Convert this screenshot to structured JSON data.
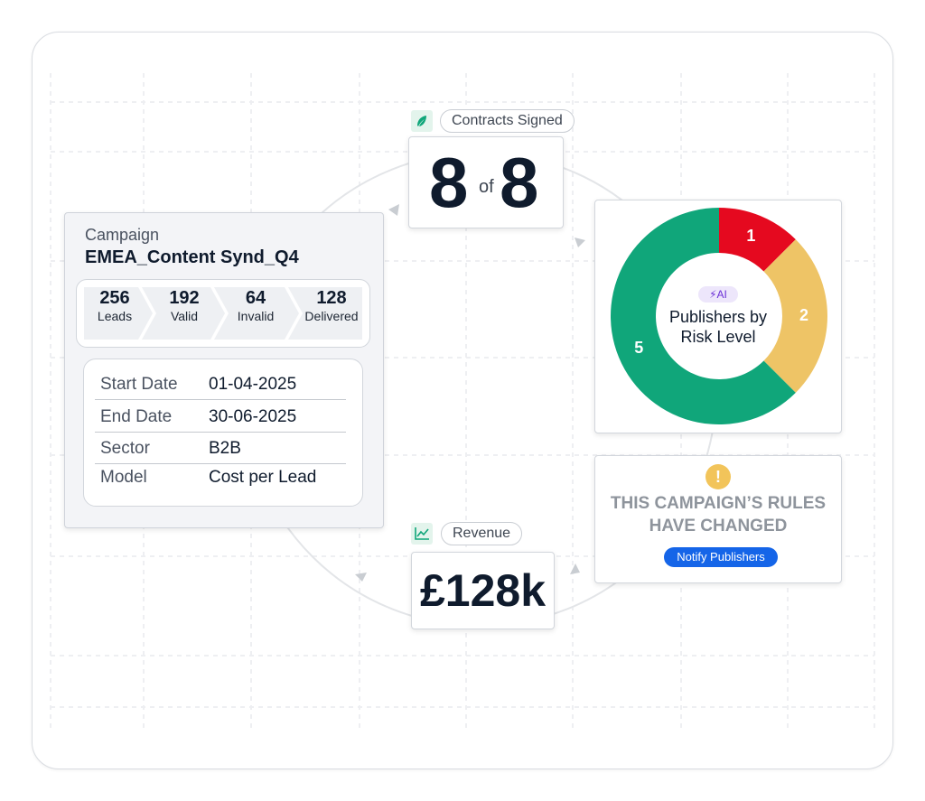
{
  "campaign": {
    "label": "Campaign",
    "name": "EMEA_Content Synd_Q4",
    "funnel": [
      {
        "value": "256",
        "label": "Leads"
      },
      {
        "value": "192",
        "label": "Valid"
      },
      {
        "value": "64",
        "label": "Invalid"
      },
      {
        "value": "128",
        "label": "Delivered"
      }
    ],
    "details": [
      {
        "key": "Start Date",
        "value": "01-04-2025"
      },
      {
        "key": "End Date",
        "value": "30-06-2025"
      },
      {
        "key": "Sector",
        "value": "B2B"
      },
      {
        "key": "Model",
        "value": "Cost per Lead"
      }
    ]
  },
  "contracts": {
    "label": "Contracts Signed",
    "signed": "8",
    "of": "of",
    "total": "8"
  },
  "risk": {
    "badge": "AI",
    "title": "Publishers by Risk Level",
    "segments": [
      {
        "value": 1,
        "color": "#e5091f"
      },
      {
        "value": 2,
        "color": "#eec466"
      },
      {
        "value": 5,
        "color": "#10a67a"
      }
    ]
  },
  "rules": {
    "message": "THIS CAMPAIGN’S RULES HAVE CHANGED",
    "button": "Notify Publishers"
  },
  "revenue": {
    "label": "Revenue",
    "value": "£128k"
  }
}
